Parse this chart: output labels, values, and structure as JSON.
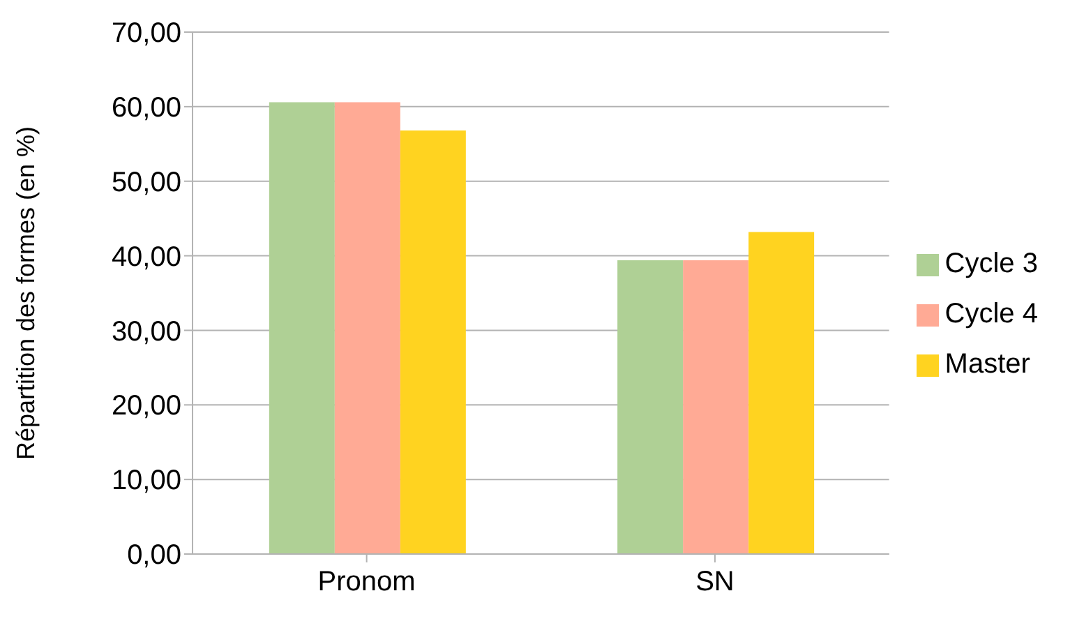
{
  "chart_data": {
    "type": "bar",
    "ylabel": "Répartition des formes (en %)",
    "categories": [
      "Pronom",
      "SN"
    ],
    "series": [
      {
        "name": "Cycle 3",
        "color": "#afd095",
        "values": [
          60.6,
          39.4
        ]
      },
      {
        "name": "Cycle 4",
        "color": "#ffaa95",
        "values": [
          60.6,
          39.4
        ]
      },
      {
        "name": "Master",
        "color": "#ffd320",
        "values": [
          56.8,
          43.2
        ]
      }
    ],
    "ylim": [
      0,
      70
    ],
    "yticks": [
      {
        "value": 0,
        "label": "0,00"
      },
      {
        "value": 10,
        "label": "10,00"
      },
      {
        "value": 20,
        "label": "20,00"
      },
      {
        "value": 30,
        "label": "30,00"
      },
      {
        "value": 40,
        "label": "40,00"
      },
      {
        "value": 50,
        "label": "50,00"
      },
      {
        "value": 60,
        "label": "60,00"
      },
      {
        "value": 70,
        "label": "70,00"
      }
    ],
    "grid": "y",
    "legend": "right"
  }
}
